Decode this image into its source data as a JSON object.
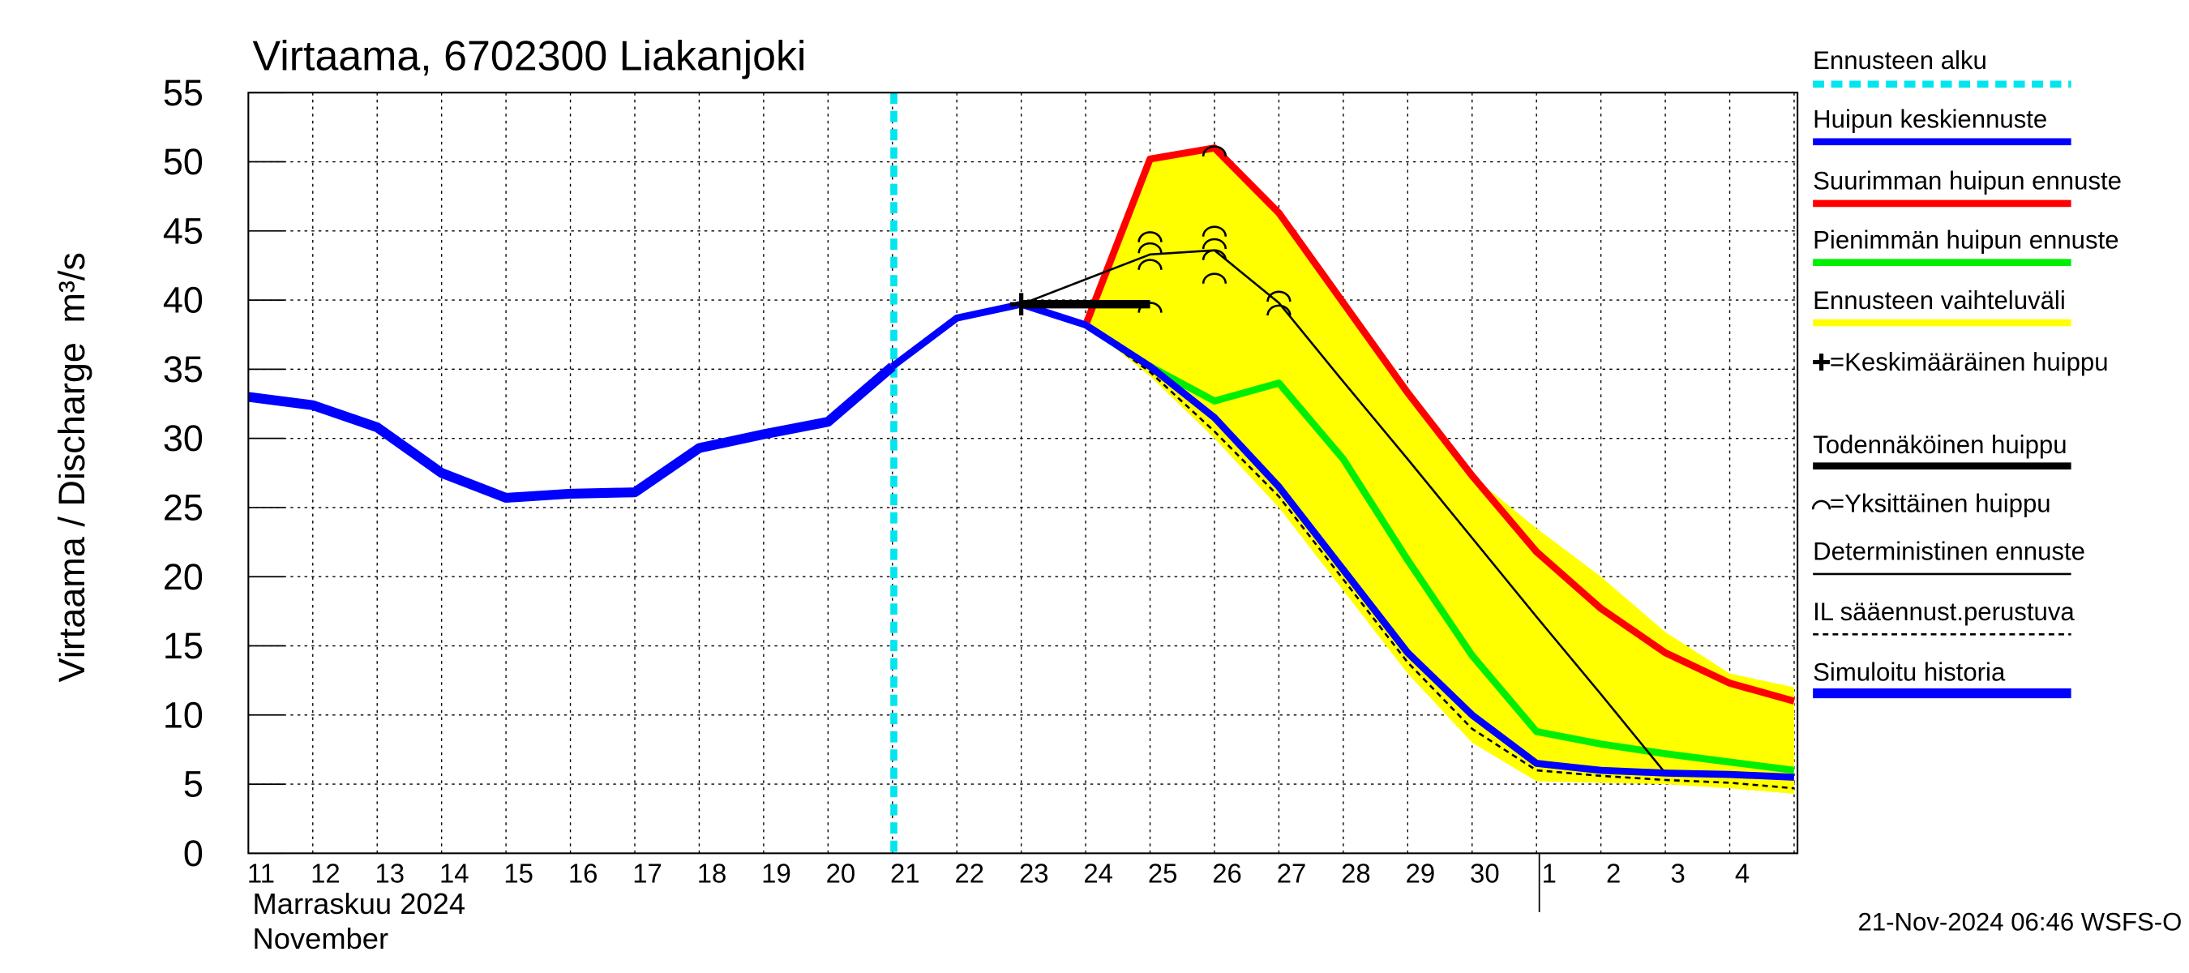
{
  "chart_data": {
    "type": "line",
    "title": "Virtaama, 6702300 Liakanjoki",
    "y_label": "Virtaama / Discharge",
    "y_unit": "m³/s",
    "x_label_fi": "Marraskuu 2024",
    "x_label_en": "November",
    "timestamp": "21-Nov-2024 06:46 WSFS-O",
    "categories": [
      "11",
      "12",
      "13",
      "14",
      "15",
      "16",
      "17",
      "18",
      "19",
      "20",
      "21",
      "22",
      "23",
      "24",
      "25",
      "26",
      "27",
      "28",
      "29",
      "30",
      "1",
      "2",
      "3",
      "4",
      null
    ],
    "ylim": [
      0,
      55
    ],
    "yticks": [
      0,
      5,
      10,
      15,
      20,
      25,
      30,
      35,
      40,
      45,
      50,
      55
    ],
    "grid": true,
    "forecast_start": {
      "name": "Ennusteen alku",
      "color": "#00e5ee",
      "x": "21"
    },
    "band": {
      "name": "Ennusteen vaihteluväli",
      "color": "#ffff00",
      "upper": [
        null,
        null,
        null,
        null,
        null,
        null,
        null,
        null,
        null,
        null,
        null,
        null,
        null,
        38.2,
        50.2,
        51,
        46.3,
        39.8,
        33.3,
        27.3,
        23.5,
        20,
        16,
        13,
        12
      ],
      "lower": [
        null,
        null,
        null,
        null,
        null,
        null,
        null,
        null,
        null,
        null,
        null,
        null,
        null,
        38.2,
        34.5,
        30,
        25,
        19,
        13,
        8,
        5.2,
        5.1,
        5,
        4.7,
        4.3
      ]
    },
    "series": [
      {
        "name": "Huipun keskiennuste",
        "color": "#0000ff",
        "width": 5,
        "values": [
          null,
          null,
          null,
          null,
          null,
          null,
          null,
          null,
          null,
          null,
          35.2,
          38.7,
          39.7,
          38.2,
          35.2,
          31.5,
          26.5,
          20.5,
          14.5,
          10,
          6.5,
          6,
          5.8,
          5.7,
          5.5
        ]
      },
      {
        "name": "Suurimman huipun ennuste",
        "color": "#ff0000",
        "width": 5,
        "values": [
          null,
          null,
          null,
          null,
          null,
          null,
          null,
          null,
          null,
          null,
          null,
          null,
          null,
          38.2,
          50.2,
          51,
          46.3,
          39.8,
          33.3,
          27.3,
          21.8,
          17.7,
          14.5,
          12.3,
          11
        ]
      },
      {
        "name": "Pienimmän huipun ennuste",
        "color": "#00ee00",
        "width": 5,
        "values": [
          null,
          null,
          null,
          null,
          null,
          null,
          null,
          null,
          null,
          null,
          null,
          null,
          null,
          38.2,
          35.2,
          32.7,
          34,
          28.5,
          21.2,
          14.3,
          8.8,
          7.9,
          7.2,
          6.6,
          6
        ]
      },
      {
        "name": "Deterministinen ennuste",
        "color": "#000000",
        "width": 1.5,
        "values": [
          null,
          null,
          null,
          null,
          null,
          null,
          null,
          null,
          null,
          null,
          null,
          null,
          39.7,
          41.5,
          43.3,
          43.6,
          39.8,
          34.1,
          28.5,
          22.8,
          17.1,
          11.5,
          5.8,
          5.7,
          5.5
        ]
      },
      {
        "name": "IL sääennust.perustuva",
        "color": "#000000",
        "width": 1.5,
        "dashed": true,
        "values": [
          null,
          null,
          null,
          null,
          null,
          null,
          null,
          null,
          null,
          null,
          null,
          null,
          null,
          38.2,
          34.8,
          30.5,
          25.8,
          19.8,
          13.8,
          9,
          6,
          5.6,
          5.3,
          5.1,
          4.7
        ]
      },
      {
        "name": "Simuloitu historia",
        "color": "#0000ff",
        "width": 7,
        "values": [
          33,
          32.4,
          30.8,
          27.5,
          25.7,
          26,
          26.1,
          29.3,
          30.3,
          31.2,
          35.2,
          null,
          null,
          null,
          null,
          null,
          null,
          null,
          null,
          null,
          null,
          null,
          null,
          null,
          null
        ]
      }
    ],
    "mean_peak": {
      "name": "=Keskimääräinen huippu",
      "x": "23",
      "value": 39.7
    },
    "probable_peak": {
      "name": "Todennäköinen huippu",
      "x": [
        "23",
        "25"
      ],
      "value": 39.7
    },
    "individual_peaks": {
      "name": "=Yksittäinen huippu",
      "x": [
        "25",
        "25",
        "25",
        "25",
        "26",
        "26",
        "26",
        "26",
        "26",
        "27",
        "27"
      ],
      "values": [
        44.8,
        44,
        42.8,
        39.7,
        51,
        45.2,
        44.3,
        43.5,
        41.8,
        40.5,
        39.5
      ]
    }
  }
}
